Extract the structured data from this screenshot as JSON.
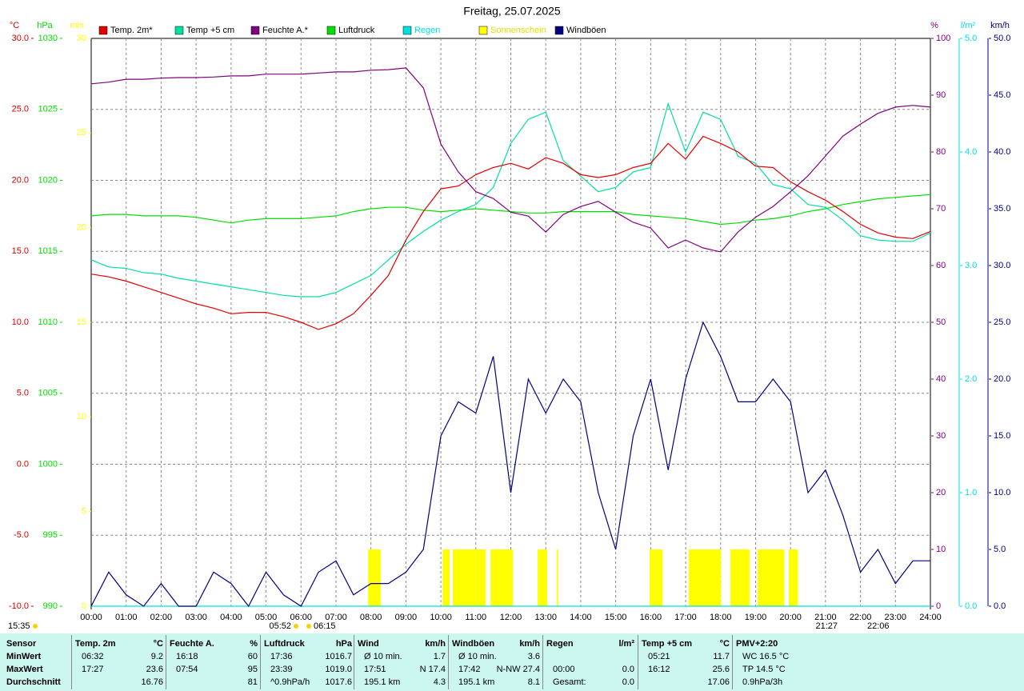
{
  "chart_data": {
    "type": "line",
    "title": "Freitag, 25.07.2025",
    "ylabel": "°C",
    "y2label": "hPa",
    "y3label": "min",
    "y4label": "%",
    "y5label": "l/m²",
    "y6label": "km/h",
    "ylim": [
      -10,
      30
    ],
    "yticks": [
      {
        "value": -10,
        "label": "-10.0"
      },
      {
        "value": -5,
        "label": "-5.0"
      },
      {
        "value": 0,
        "label": "0.0"
      },
      {
        "value": 5,
        "label": "5.0"
      },
      {
        "value": 10,
        "label": "10.0"
      },
      {
        "value": 15,
        "label": "15.0"
      },
      {
        "value": 20,
        "label": "20.0"
      },
      {
        "value": 25,
        "label": "25.0"
      },
      {
        "value": 30,
        "label": "30.0"
      }
    ],
    "y2lim": [
      990,
      1030
    ],
    "y2ticks": [
      990,
      995,
      1000,
      1005,
      1010,
      1015,
      1020,
      1025,
      1030
    ],
    "y3lim": [
      0,
      30
    ],
    "y3ticks": [
      0,
      5,
      10,
      15,
      20,
      25,
      30
    ],
    "y4lim": [
      0,
      100
    ],
    "y4ticks": [
      0,
      10,
      20,
      30,
      40,
      50,
      60,
      70,
      80,
      90,
      100
    ],
    "y5lim": [
      0,
      5
    ],
    "y5ticks": [
      {
        "value": 0,
        "label": "0.0"
      },
      {
        "value": 1,
        "label": "1.0"
      },
      {
        "value": 2,
        "label": "2.0"
      },
      {
        "value": 3,
        "label": "3.0"
      },
      {
        "value": 4,
        "label": "4.0"
      },
      {
        "value": 5,
        "label": "5.0"
      }
    ],
    "y6lim": [
      0,
      50
    ],
    "y6ticks": [
      {
        "value": 0,
        "label": "0.0"
      },
      {
        "value": 5,
        "label": "5.0"
      },
      {
        "value": 10,
        "label": "10.0"
      },
      {
        "value": 15,
        "label": "15.0"
      },
      {
        "value": 20,
        "label": "20.0"
      },
      {
        "value": 25,
        "label": "25.0"
      },
      {
        "value": 30,
        "label": "30.0"
      },
      {
        "value": 35,
        "label": "35.0"
      },
      {
        "value": 40,
        "label": "40.0"
      },
      {
        "value": 45,
        "label": "45.0"
      },
      {
        "value": 50,
        "label": "50.0"
      }
    ],
    "xlim": [
      0,
      24
    ],
    "xticks": [
      {
        "value": 0,
        "label": "00:00"
      },
      {
        "value": 1,
        "label": "01:00"
      },
      {
        "value": 2,
        "label": "02:00"
      },
      {
        "value": 3,
        "label": "03:00"
      },
      {
        "value": 4,
        "label": "04:00"
      },
      {
        "value": 5,
        "label": "05:00"
      },
      {
        "value": 6,
        "label": "06:00"
      },
      {
        "value": 7,
        "label": "07:00"
      },
      {
        "value": 8,
        "label": "08:00"
      },
      {
        "value": 9,
        "label": "09:00"
      },
      {
        "value": 10,
        "label": "10:00"
      },
      {
        "value": 11,
        "label": "11:00"
      },
      {
        "value": 12,
        "label": "12:00"
      },
      {
        "value": 13,
        "label": "13:00"
      },
      {
        "value": 14,
        "label": "14:00"
      },
      {
        "value": 15,
        "label": "15:00"
      },
      {
        "value": 16,
        "label": "16:00"
      },
      {
        "value": 17,
        "label": "17:00"
      },
      {
        "value": 18,
        "label": "18:00"
      },
      {
        "value": 19,
        "label": "19:00"
      },
      {
        "value": 20,
        "label": "20:00"
      },
      {
        "value": 21,
        "label": "21:00"
      },
      {
        "value": 22,
        "label": "22:00"
      },
      {
        "value": 23,
        "label": "23:00"
      },
      {
        "value": 24,
        "label": "24:00"
      }
    ],
    "grid": true,
    "x": [
      0,
      0.5,
      1,
      1.5,
      2,
      2.5,
      3,
      3.5,
      4,
      4.5,
      5,
      5.5,
      6,
      6.5,
      7,
      7.5,
      8,
      8.5,
      9,
      9.5,
      10,
      10.5,
      11,
      11.5,
      12,
      12.5,
      13,
      13.5,
      14,
      14.5,
      15,
      15.5,
      16,
      16.5,
      17,
      17.5,
      18,
      18.5,
      19,
      19.5,
      20,
      20.5,
      21,
      21.5,
      22,
      22.5,
      23,
      23.5,
      24
    ],
    "series": [
      {
        "name": "Temp. 2m*",
        "color": "#e00000",
        "type": "line",
        "axis": "y",
        "values": [
          13.4,
          13.2,
          12.9,
          12.5,
          12.1,
          11.7,
          11.3,
          11.0,
          10.6,
          10.7,
          10.7,
          10.4,
          10.0,
          9.5,
          9.9,
          10.6,
          11.9,
          13.3,
          15.8,
          17.8,
          19.4,
          19.6,
          20.4,
          20.9,
          21.2,
          20.8,
          21.6,
          21.2,
          20.4,
          20.2,
          20.4,
          20.9,
          21.2,
          22.6,
          21.5,
          23.1,
          22.6,
          22.0,
          21.0,
          20.9,
          19.9,
          19.2,
          18.6,
          17.8,
          16.9,
          16.3,
          16.0,
          15.9,
          16.4
        ]
      },
      {
        "name": "Temp +5 cm",
        "color": "#00e0a0",
        "type": "line",
        "axis": "y",
        "values": [
          14.4,
          13.9,
          13.8,
          13.5,
          13.4,
          13.1,
          12.9,
          12.7,
          12.5,
          12.3,
          12.1,
          11.9,
          11.8,
          11.8,
          12.1,
          12.7,
          13.3,
          14.4,
          15.5,
          16.4,
          17.2,
          17.8,
          18.3,
          19.5,
          22.6,
          24.3,
          24.8,
          21.4,
          20.3,
          19.2,
          19.5,
          20.6,
          20.9,
          25.4,
          22.0,
          24.8,
          24.3,
          21.7,
          21.2,
          19.7,
          19.4,
          18.3,
          18.1,
          17.2,
          16.1,
          15.8,
          15.7,
          15.7,
          16.3
        ]
      },
      {
        "name": "Feuchte A.*",
        "color": "#800080",
        "type": "line",
        "axis": "y4",
        "values": [
          92.0,
          92.3,
          92.8,
          92.8,
          93.0,
          93.1,
          93.1,
          93.2,
          93.4,
          93.4,
          93.7,
          93.7,
          93.7,
          93.9,
          94.1,
          94.1,
          94.4,
          94.5,
          94.8,
          91.3,
          81.4,
          76.5,
          73.0,
          71.8,
          69.4,
          68.7,
          65.9,
          69.0,
          70.4,
          71.3,
          69.4,
          67.6,
          66.6,
          63.1,
          64.5,
          63.1,
          62.4,
          65.9,
          68.5,
          70.4,
          73.0,
          75.8,
          79.3,
          82.8,
          84.9,
          86.8,
          87.9,
          88.2,
          87.9
        ]
      },
      {
        "name": "Luftdruck",
        "color": "#00e000",
        "type": "line",
        "axis": "y2",
        "values": [
          1017.5,
          1017.6,
          1017.6,
          1017.5,
          1017.5,
          1017.5,
          1017.4,
          1017.2,
          1017.0,
          1017.2,
          1017.3,
          1017.3,
          1017.3,
          1017.4,
          1017.5,
          1017.8,
          1018.0,
          1018.1,
          1018.1,
          1017.9,
          1017.8,
          1017.9,
          1018.0,
          1017.9,
          1017.8,
          1017.7,
          1017.7,
          1017.8,
          1017.8,
          1017.8,
          1017.8,
          1017.6,
          1017.5,
          1017.4,
          1017.3,
          1017.1,
          1016.9,
          1017.0,
          1017.2,
          1017.3,
          1017.5,
          1017.8,
          1018.0,
          1018.3,
          1018.5,
          1018.7,
          1018.8,
          1018.9,
          1019.0
        ]
      },
      {
        "name": "Regen",
        "color": "#00e0e0",
        "type": "line",
        "axis": "y5",
        "x": [
          0,
          24
        ],
        "values": [
          0,
          0
        ]
      },
      {
        "name": "Sonnenschein",
        "color": "#ffff00",
        "type": "bar",
        "axis": "y3",
        "x": [
          7.92,
          10.05,
          10.34,
          11.42,
          12.77,
          13.32,
          15.97,
          17.09,
          18.28,
          19.06,
          19.95
        ],
        "x_end": [
          8.28,
          10.25,
          11.28,
          12.06,
          13.04,
          13.36,
          16.34,
          18.01,
          18.83,
          19.82,
          20.21
        ],
        "values": [
          3,
          3,
          3,
          3,
          3,
          3,
          3,
          3,
          3,
          3,
          3
        ]
      },
      {
        "name": "Windböen",
        "color": "#000080",
        "type": "line",
        "axis": "y6",
        "values": [
          0,
          3,
          1,
          0,
          2,
          0,
          0,
          3,
          2,
          0,
          3,
          1,
          0,
          3,
          4,
          1,
          2,
          2,
          3,
          5,
          15,
          18,
          17,
          22,
          10,
          20,
          17,
          20,
          18,
          10,
          5,
          15,
          20,
          12,
          20,
          25,
          22,
          18,
          18,
          20,
          18,
          10,
          12,
          8,
          3,
          5,
          2,
          4,
          4
        ]
      }
    ],
    "annotations": [
      "15:35",
      "05:52",
      "06:15",
      "21:27",
      "22:06"
    ]
  },
  "table": {
    "row_header": "Sensor",
    "columns": [
      {
        "name": "Temp. 2m",
        "unit": "°C"
      },
      {
        "name": "Feuchte A.",
        "unit": "%"
      },
      {
        "name": "Luftdruck",
        "unit": "hPa"
      },
      {
        "name": "Wind",
        "unit": "km/h"
      },
      {
        "name": "Windböen",
        "unit": "km/h"
      },
      {
        "name": "Regen",
        "unit": "l/m²"
      },
      {
        "name": "Temp +5 cm",
        "unit": "°C"
      },
      {
        "name": "PMV+2:20"
      }
    ],
    "rows": [
      {
        "label": "MinWert",
        "cells": [
          {
            "left": "06:32",
            "right": "9.2"
          },
          {
            "left": "16:18",
            "right": "60"
          },
          {
            "left": "17:36",
            "right": "1016.7"
          },
          {
            "left": "Ø 10 min.",
            "right": "1.7"
          },
          {
            "left": "Ø 10 min.",
            "right": "3.6"
          },
          {},
          {
            "left": "05:21",
            "right": "11.7"
          },
          {
            "left": "WC 16.5 °C"
          }
        ]
      },
      {
        "label": "MaxWert",
        "cells": [
          {
            "left": "17:27",
            "right": "23.6"
          },
          {
            "left": "07:54",
            "right": "95"
          },
          {
            "left": "23:39",
            "right": "1019.0"
          },
          {
            "left": "17:51",
            "right": "N 17.4"
          },
          {
            "left": "17:42",
            "right": "N-NW 27.4"
          },
          {
            "left": "00:00",
            "right": "0.0"
          },
          {
            "left": "16:12",
            "right": "25.6"
          },
          {
            "left": "TP 14.5 °C"
          }
        ]
      },
      {
        "label": "Durchschnitt",
        "cells": [
          {
            "right": "16.76"
          },
          {
            "right": "81"
          },
          {
            "left": "^0.9hPa/h",
            "right": "1017.6"
          },
          {
            "left": "195.1 km",
            "right": "4.3"
          },
          {
            "left": "195.1 km",
            "right": "8.1"
          },
          {
            "left": "Gesamt:",
            "right": "0.0"
          },
          {
            "right": "17.06"
          },
          {
            "left": "0.9hPa/3h"
          }
        ]
      }
    ]
  }
}
